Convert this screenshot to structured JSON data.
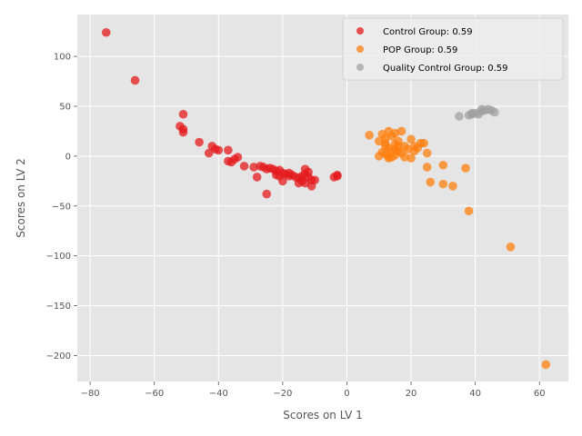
{
  "chart_data": {
    "type": "scatter",
    "title": "",
    "xlabel": "Scores on LV 1",
    "ylabel": "Scores on LV 2",
    "xlim": [
      -84,
      69
    ],
    "ylim": [
      -226,
      142
    ],
    "xticks": [
      -80,
      -60,
      -40,
      -20,
      0,
      20,
      40,
      60
    ],
    "yticks": [
      100,
      50,
      0,
      -50,
      -100,
      -150,
      -200
    ],
    "grid": true,
    "legend_position": "top-right",
    "series": [
      {
        "name": "Control Group: 0.59",
        "color": "#e41a1c",
        "points": [
          [
            -75,
            124
          ],
          [
            -66,
            76
          ],
          [
            -51,
            42
          ],
          [
            -52,
            30
          ],
          [
            -51,
            27
          ],
          [
            -51,
            24
          ],
          [
            -46,
            14
          ],
          [
            -42,
            10
          ],
          [
            -41,
            7
          ],
          [
            -40,
            6
          ],
          [
            -43,
            3
          ],
          [
            -37,
            6
          ],
          [
            -34,
            -1
          ],
          [
            -35,
            -3
          ],
          [
            -37,
            -5
          ],
          [
            -36,
            -6
          ],
          [
            -32,
            -10
          ],
          [
            -29,
            -11
          ],
          [
            -28,
            -21
          ],
          [
            -27,
            -10
          ],
          [
            -26,
            -11
          ],
          [
            -25,
            -13
          ],
          [
            -24,
            -12
          ],
          [
            -23,
            -13
          ],
          [
            -22,
            -15
          ],
          [
            -21,
            -14
          ],
          [
            -22,
            -19
          ],
          [
            -20,
            -17
          ],
          [
            -19,
            -18
          ],
          [
            -18,
            -17
          ],
          [
            -17,
            -19
          ],
          [
            -18,
            -20
          ],
          [
            -16,
            -21
          ],
          [
            -15,
            -22
          ],
          [
            -14,
            -20
          ],
          [
            -13,
            -18
          ],
          [
            -13,
            -13
          ],
          [
            -12,
            -16
          ],
          [
            -12,
            -21
          ],
          [
            -11,
            -24
          ],
          [
            -10,
            -24
          ],
          [
            -14,
            -25
          ],
          [
            -15,
            -27
          ],
          [
            -13,
            -27
          ],
          [
            -11,
            -30
          ],
          [
            -20,
            -25
          ],
          [
            -21,
            -20
          ],
          [
            -25,
            -38
          ],
          [
            -3,
            -20
          ],
          [
            -3,
            -19
          ],
          [
            -4,
            -21
          ]
        ]
      },
      {
        "name": "POP Group: 0.59",
        "color": "#ff7f0e",
        "points": [
          [
            7,
            21
          ],
          [
            10,
            15
          ],
          [
            11,
            22
          ],
          [
            12,
            18
          ],
          [
            13,
            25
          ],
          [
            14,
            20
          ],
          [
            15,
            23
          ],
          [
            16,
            15
          ],
          [
            17,
            25
          ],
          [
            18,
            10
          ],
          [
            19,
            7
          ],
          [
            20,
            17
          ],
          [
            21,
            10
          ],
          [
            22,
            8
          ],
          [
            23,
            13
          ],
          [
            24,
            13
          ],
          [
            12,
            10
          ],
          [
            13,
            8
          ],
          [
            14,
            5
          ],
          [
            15,
            7
          ],
          [
            16,
            5
          ],
          [
            17,
            3
          ],
          [
            11,
            4
          ],
          [
            12,
            2
          ],
          [
            13,
            0
          ],
          [
            10,
            0
          ],
          [
            13,
            -2
          ],
          [
            14,
            -1
          ],
          [
            15,
            1
          ],
          [
            18,
            -1
          ],
          [
            20,
            -2
          ],
          [
            21,
            5
          ],
          [
            25,
            3
          ],
          [
            12,
            13
          ],
          [
            15,
            12
          ],
          [
            16,
            10
          ],
          [
            25,
            -11
          ],
          [
            30,
            -9
          ],
          [
            26,
            -26
          ],
          [
            30,
            -28
          ],
          [
            33,
            -30
          ],
          [
            37,
            -12
          ],
          [
            38,
            -55
          ],
          [
            51,
            -91
          ],
          [
            62,
            -209
          ]
        ]
      },
      {
        "name": "Quality Control Group: 0.59",
        "color": "#a0a0a0",
        "points": [
          [
            35,
            40
          ],
          [
            38,
            41
          ],
          [
            39,
            42
          ],
          [
            40,
            43
          ],
          [
            41,
            42
          ],
          [
            42,
            45
          ],
          [
            42,
            47
          ],
          [
            43,
            46
          ],
          [
            44,
            47
          ],
          [
            45,
            46
          ],
          [
            46,
            44
          ],
          [
            39,
            43
          ]
        ]
      }
    ]
  }
}
